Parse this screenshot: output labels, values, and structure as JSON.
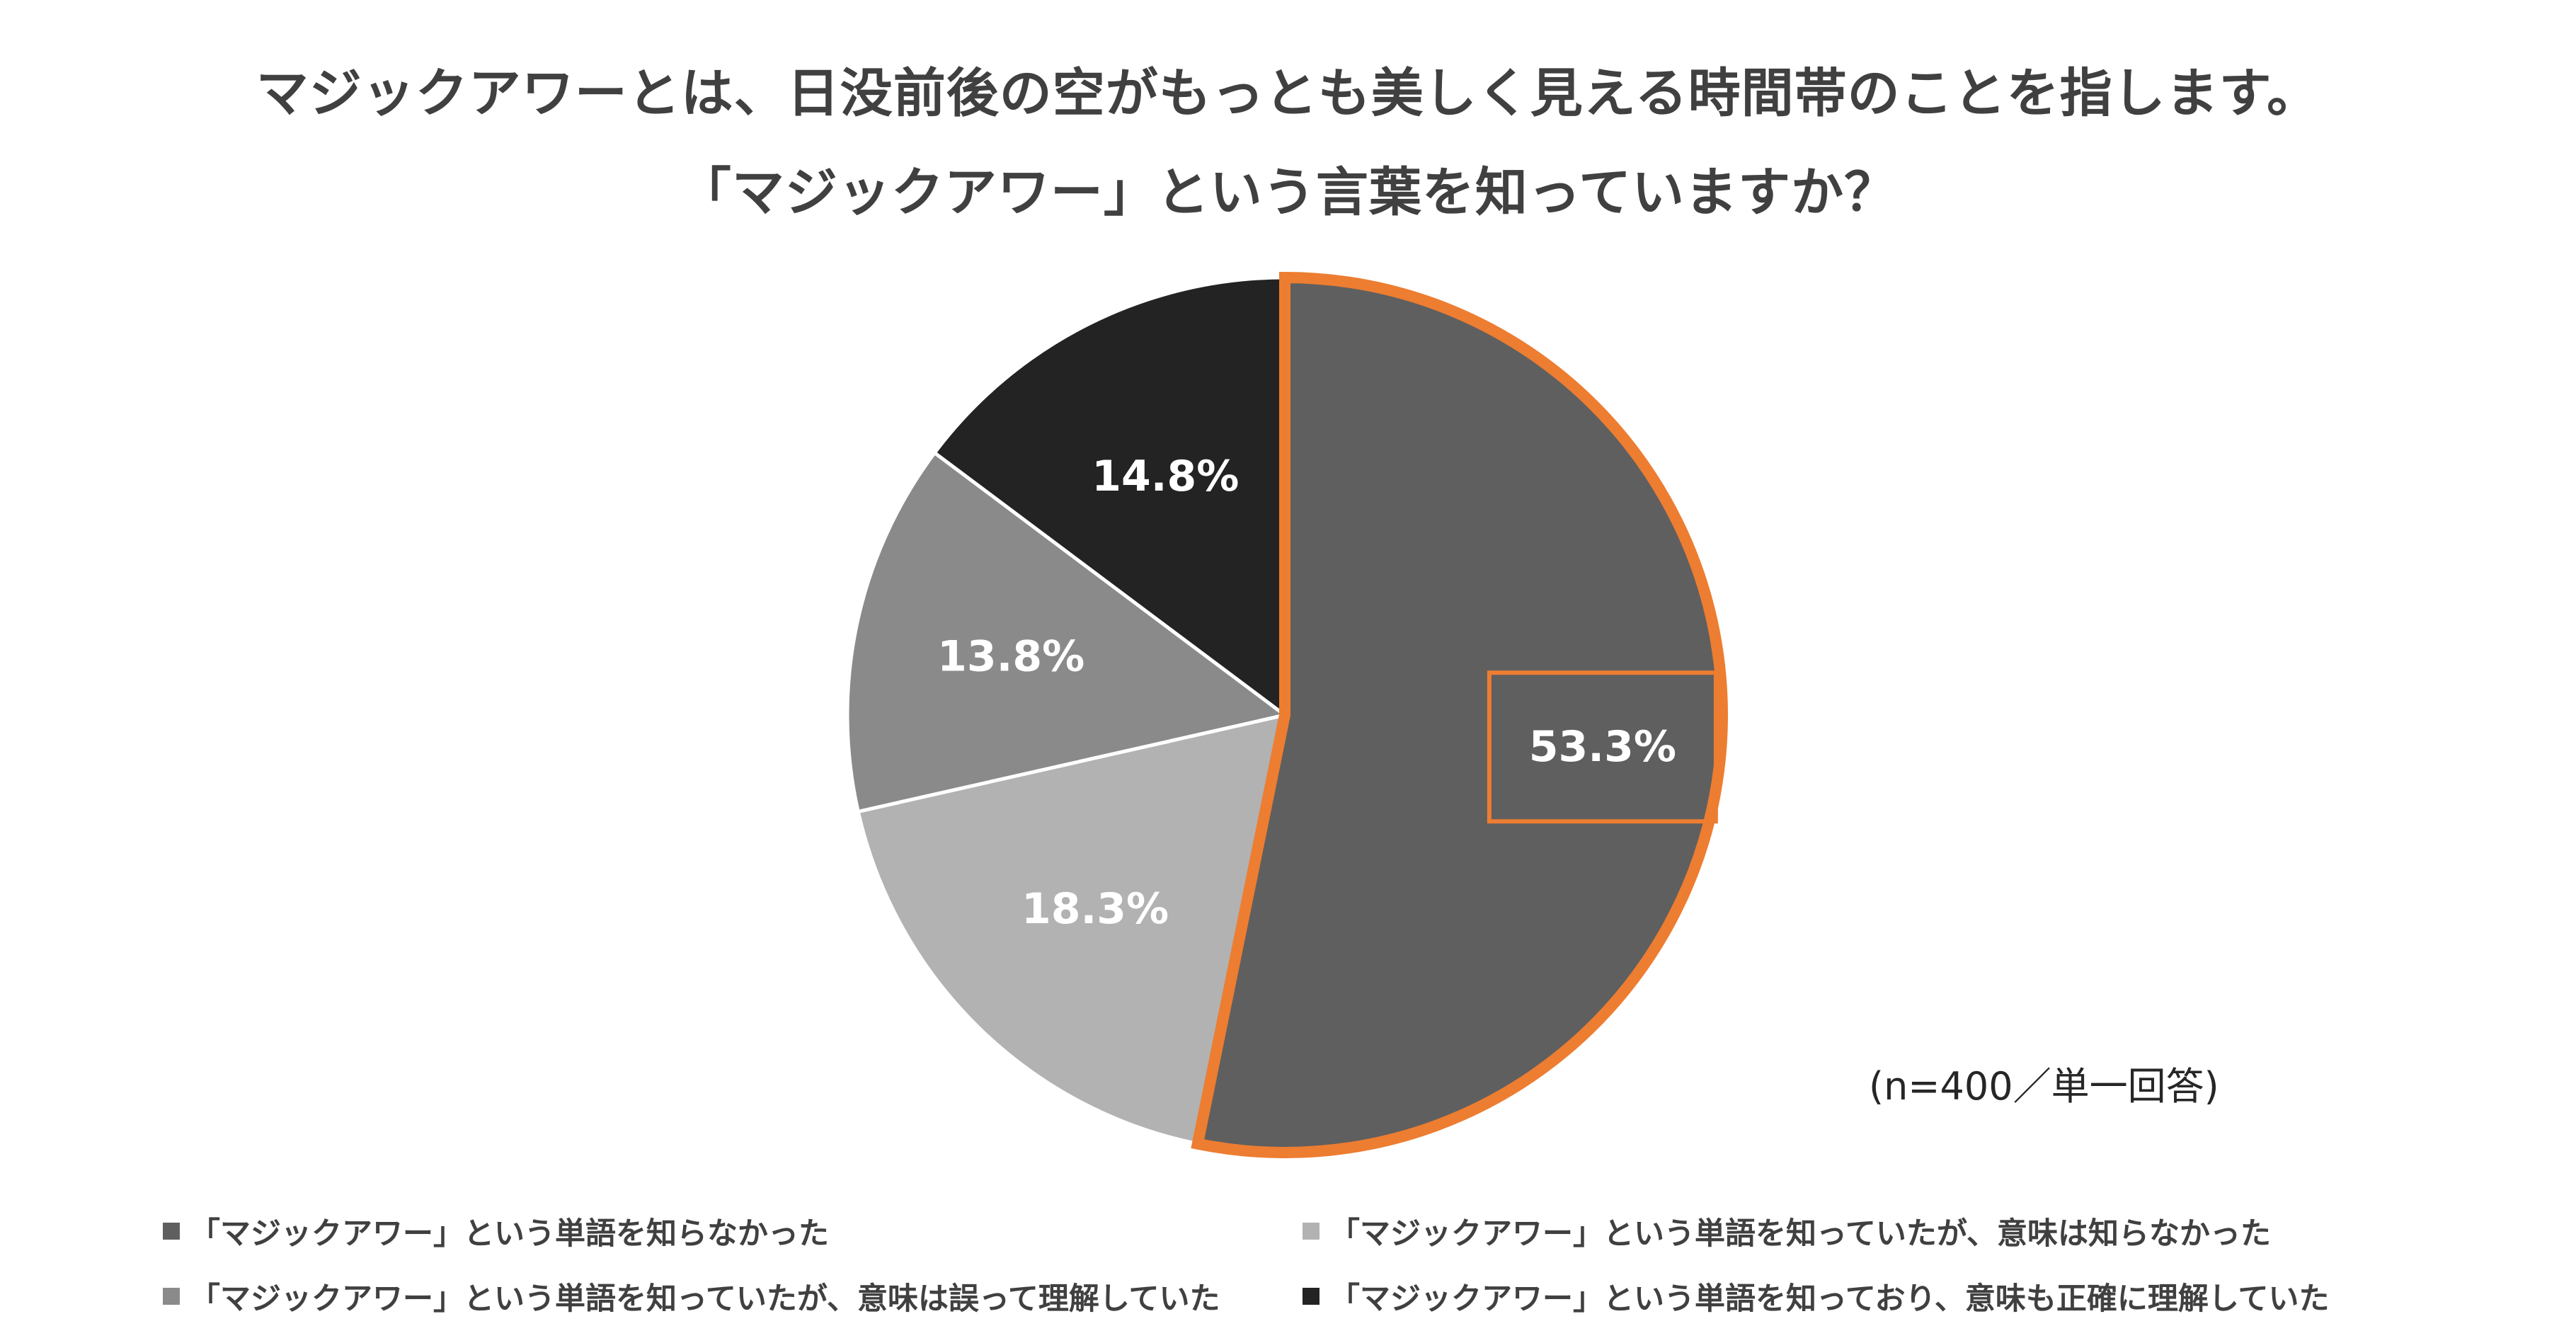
{
  "chart_data": {
    "type": "pie",
    "title_lines": [
      "マジックアワーとは、日没前後の空がもっとも美しく見える時間帯のことを指します。",
      "「マジックアワー」という言葉を知っていますか？"
    ],
    "series": [
      {
        "name": "「マジックアワー」という単語を知らなかった",
        "value": 53.3,
        "label": "53.3%",
        "color": "#5f5f5f",
        "highlight": true
      },
      {
        "name": "「マジックアワー」という単語を知っていたが、意味は知らなかった",
        "value": 18.3,
        "label": "18.3%",
        "color": "#b2b2b2",
        "highlight": false
      },
      {
        "name": "「マジックアワー」という単語を知っていたが、意味は誤って理解していた",
        "value": 13.8,
        "label": "13.8%",
        "color": "#8a8a8a",
        "highlight": false
      },
      {
        "name": "「マジックアワー」という単語を知っており、意味も正確に理解していた",
        "value": 14.8,
        "label": "14.8%",
        "color": "#232323",
        "highlight": false
      }
    ],
    "highlight_color": "#ed7d31",
    "legend_position": "bottom",
    "note": "(n=400／単一回答)"
  }
}
